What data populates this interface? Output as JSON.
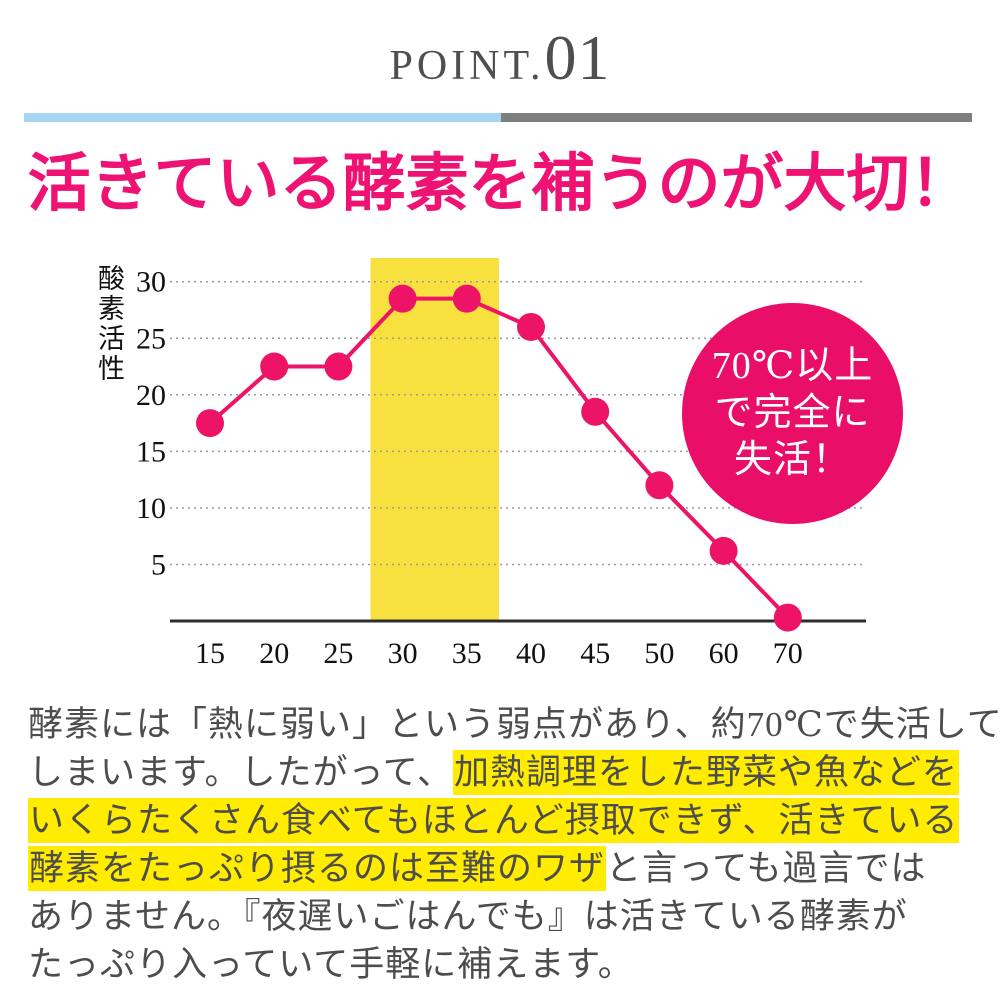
{
  "header": {
    "point_label": "POINT.",
    "point_number": "01"
  },
  "headline": {
    "text": "活きている酵素を補うのが大切！"
  },
  "chart_data": {
    "type": "line",
    "categories": [
      "15",
      "20",
      "25",
      "30",
      "35",
      "40",
      "45",
      "50",
      "60",
      "70"
    ],
    "values": [
      17.5,
      22.5,
      22.5,
      28.5,
      28.5,
      26,
      18.5,
      12,
      6.2,
      0.3
    ],
    "title": "",
    "xlabel": "",
    "ylabel": "酸素活性",
    "yticks": [
      5,
      10,
      15,
      20,
      25,
      30
    ],
    "ylim": [
      0,
      32
    ],
    "grid": "dotted-horizontal",
    "legend": "none",
    "highlight_band": {
      "from": "30",
      "to": "35"
    },
    "line_color": "#ed1467",
    "band_color": "#f8e13e"
  },
  "badge": {
    "lines": [
      "70℃以上",
      "で完全に",
      "失活！"
    ],
    "bg_color": "#e90f68"
  },
  "body": {
    "lines": [
      {
        "segments": [
          {
            "text": "酵素には「熱に弱い」という弱点があり、約70℃で失活して",
            "highlight": false
          }
        ]
      },
      {
        "segments": [
          {
            "text": "しまいます。したがって、",
            "highlight": false
          },
          {
            "text": "加熱調理をした野菜や魚などを",
            "highlight": true
          }
        ]
      },
      {
        "segments": [
          {
            "text": "いくらたくさん食べてもほとんど摂取できず、活きている",
            "highlight": true
          }
        ]
      },
      {
        "segments": [
          {
            "text": "酵素をたっぷり摂るのは至難のワザ",
            "highlight": true
          },
          {
            "text": "と言っても過言では",
            "highlight": false
          }
        ]
      },
      {
        "segments": [
          {
            "text": "ありません。『夜遅いごはんでも』は活きている酵素が",
            "highlight": false
          }
        ]
      },
      {
        "segments": [
          {
            "text": "たっぷり入っていて手軽に補えます。",
            "highlight": false
          }
        ]
      }
    ]
  },
  "colors": {
    "accent_pink": "#ee1273",
    "badge_pink": "#e90f68",
    "line_pink": "#ed1467",
    "divider_blue": "#a5d5f2",
    "divider_gray": "#7e7e7e",
    "band_yellow": "#f8e13e",
    "highlight_yellow": "#ffec00",
    "body_text": "#4d4d4d",
    "header_gray": "#4f4f4f"
  }
}
